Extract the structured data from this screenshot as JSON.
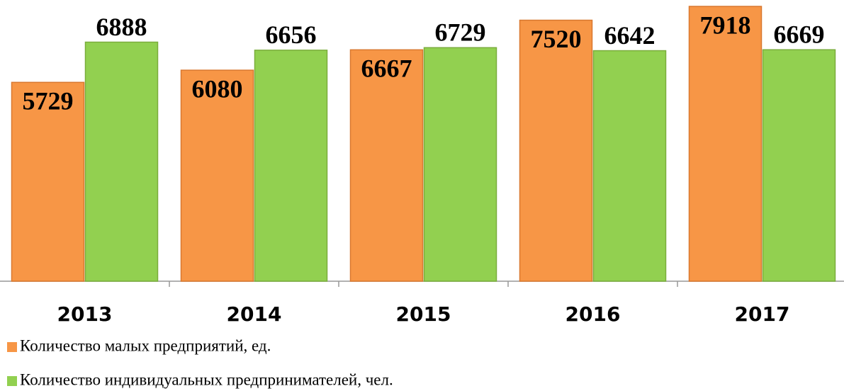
{
  "chart_data": {
    "type": "bar",
    "categories": [
      "2013",
      "2014",
      "2015",
      "2016",
      "2017"
    ],
    "series": [
      {
        "name": "Количество малых предприятий, ед.",
        "color": "#f79646",
        "values": [
          5729,
          6080,
          6667,
          7520,
          7918
        ]
      },
      {
        "name": "Количество индивидуальных предпринимателей, чел.",
        "color": "#92d050",
        "values": [
          6888,
          6656,
          6729,
          6642,
          6669
        ]
      }
    ],
    "ylim": [
      0,
      8000
    ]
  }
}
